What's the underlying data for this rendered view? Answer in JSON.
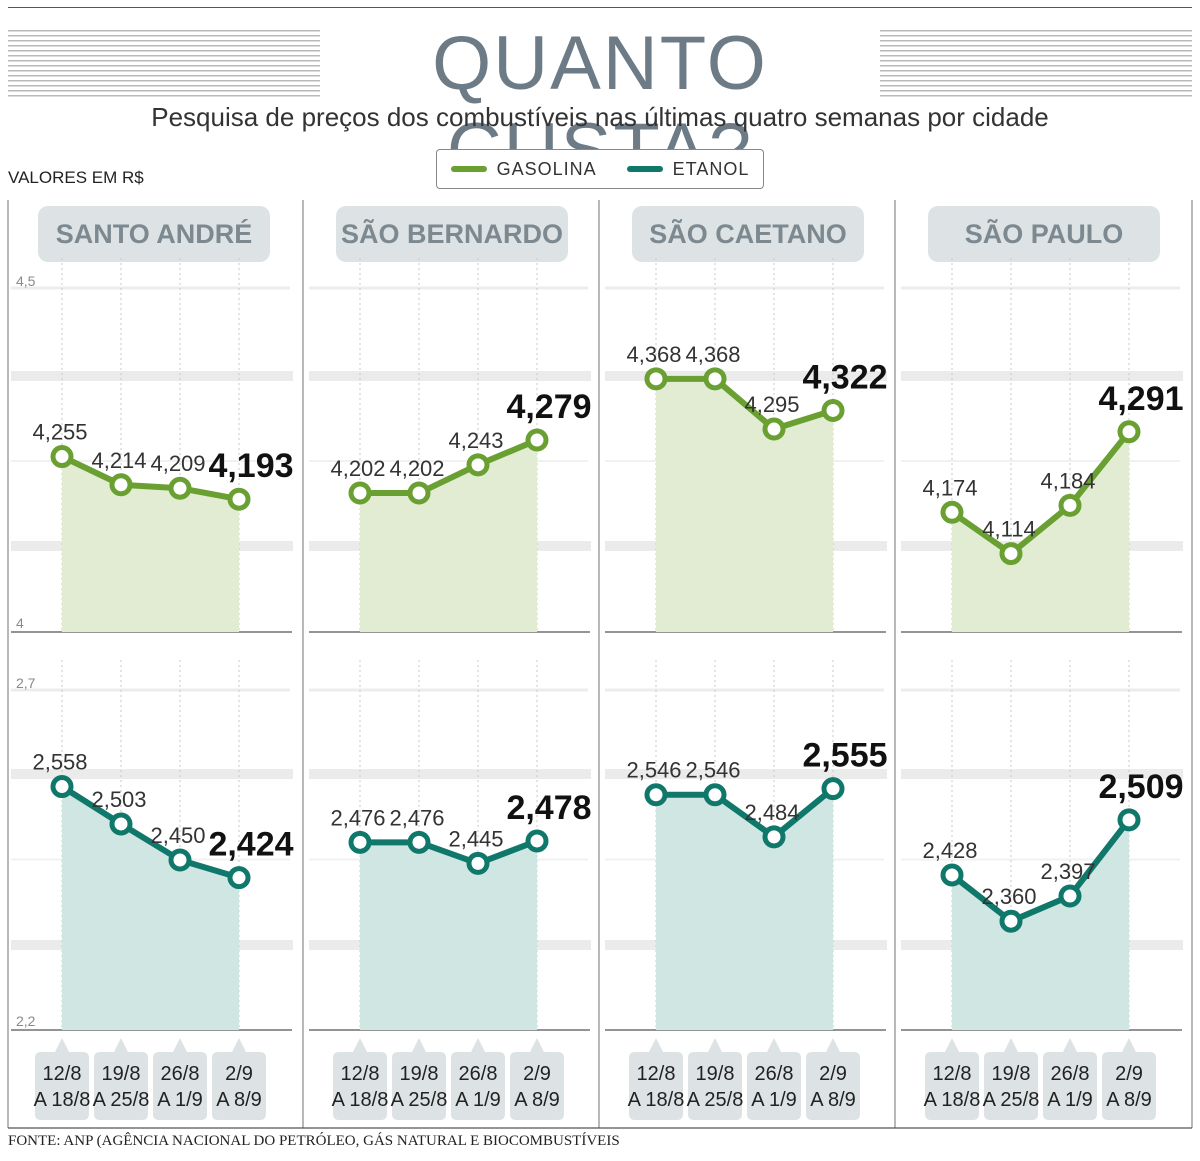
{
  "header": {
    "title": "QUANTO CUSTA?",
    "subtitle": "Pesquisa de preços dos combustíveis nas últimas quatro semanas por cidade",
    "units": "VALORES EM R$"
  },
  "legend": [
    {
      "label": "GASOLINA",
      "color": "#6a9f32"
    },
    {
      "label": "ETANOL",
      "color": "#0f786a"
    }
  ],
  "footer": "FONTE: ANP (AGÊNCIA NACIONAL DO PETRÓLEO, GÁS NATURAL E BIOCOMBUSTÍVEIS",
  "colors": {
    "gasolina_line": "#6a9f32",
    "gasolina_fill": "#e1ecd2",
    "etanol_line": "#0f786a",
    "etanol_fill": "#cfe6e2",
    "panel_title_bg": "#dde3e5",
    "panel_title_text": "#7d8990",
    "band": "#ebebeb"
  },
  "chart_data": [
    {
      "type": "line",
      "panel": "SANTO ANDRÉ",
      "categories": [
        [
          "12/8",
          "A 18/8"
        ],
        [
          "19/8",
          "A 25/8"
        ],
        [
          "26/8",
          "A 1/9"
        ],
        [
          "2/9",
          "A 8/9"
        ]
      ],
      "gasolina": {
        "values": [
          4.255,
          4.214,
          4.209,
          4.193
        ],
        "labels": [
          "4,255",
          "4,214",
          "4,209",
          "4,193"
        ],
        "ylim": [
          4,
          4.5
        ],
        "ytick_labels": [
          "4,5",
          "4"
        ]
      },
      "etanol": {
        "values": [
          2.558,
          2.503,
          2.45,
          2.424
        ],
        "labels": [
          "2,558",
          "2,503",
          "2,450",
          "2,424"
        ],
        "ylim": [
          2.2,
          2.7
        ],
        "ytick_labels": [
          "2,7",
          "2,2"
        ]
      }
    },
    {
      "type": "line",
      "panel": "SÃO BERNARDO",
      "categories": [
        [
          "12/8",
          "A 18/8"
        ],
        [
          "19/8",
          "A 25/8"
        ],
        [
          "26/8",
          "A 1/9"
        ],
        [
          "2/9",
          "A 8/9"
        ]
      ],
      "gasolina": {
        "values": [
          4.202,
          4.202,
          4.243,
          4.279
        ],
        "labels": [
          "4,202",
          "4,202",
          "4,243",
          "4,279"
        ],
        "ylim": [
          4,
          4.5
        ]
      },
      "etanol": {
        "values": [
          2.476,
          2.476,
          2.445,
          2.478
        ],
        "labels": [
          "2,476",
          "2,476",
          "2,445",
          "2,478"
        ],
        "ylim": [
          2.2,
          2.7
        ]
      }
    },
    {
      "type": "line",
      "panel": "SÃO CAETANO",
      "categories": [
        [
          "12/8",
          "A 18/8"
        ],
        [
          "19/8",
          "A 25/8"
        ],
        [
          "26/8",
          "A 1/9"
        ],
        [
          "2/9",
          "A 8/9"
        ]
      ],
      "gasolina": {
        "values": [
          4.368,
          4.368,
          4.295,
          4.322
        ],
        "labels": [
          "4,368",
          "4,368",
          "4,295",
          "4,322"
        ],
        "ylim": [
          4,
          4.5
        ]
      },
      "etanol": {
        "values": [
          2.546,
          2.546,
          2.484,
          2.555
        ],
        "labels": [
          "2,546",
          "2,546",
          "2,484",
          "2,555"
        ],
        "ylim": [
          2.2,
          2.7
        ]
      }
    },
    {
      "type": "line",
      "panel": "SÃO PAULO",
      "categories": [
        [
          "12/8",
          "A 18/8"
        ],
        [
          "19/8",
          "A 25/8"
        ],
        [
          "26/8",
          "A 1/9"
        ],
        [
          "2/9",
          "A 8/9"
        ]
      ],
      "gasolina": {
        "values": [
          4.174,
          4.114,
          4.184,
          4.291
        ],
        "labels": [
          "4,174",
          "4,114",
          "4,184",
          "4,291"
        ],
        "ylim": [
          4,
          4.5
        ]
      },
      "etanol": {
        "values": [
          2.428,
          2.36,
          2.397,
          2.509
        ],
        "labels": [
          "2,428",
          "2,360",
          "2,397",
          "2,509"
        ],
        "ylim": [
          2.2,
          2.7
        ]
      }
    }
  ]
}
